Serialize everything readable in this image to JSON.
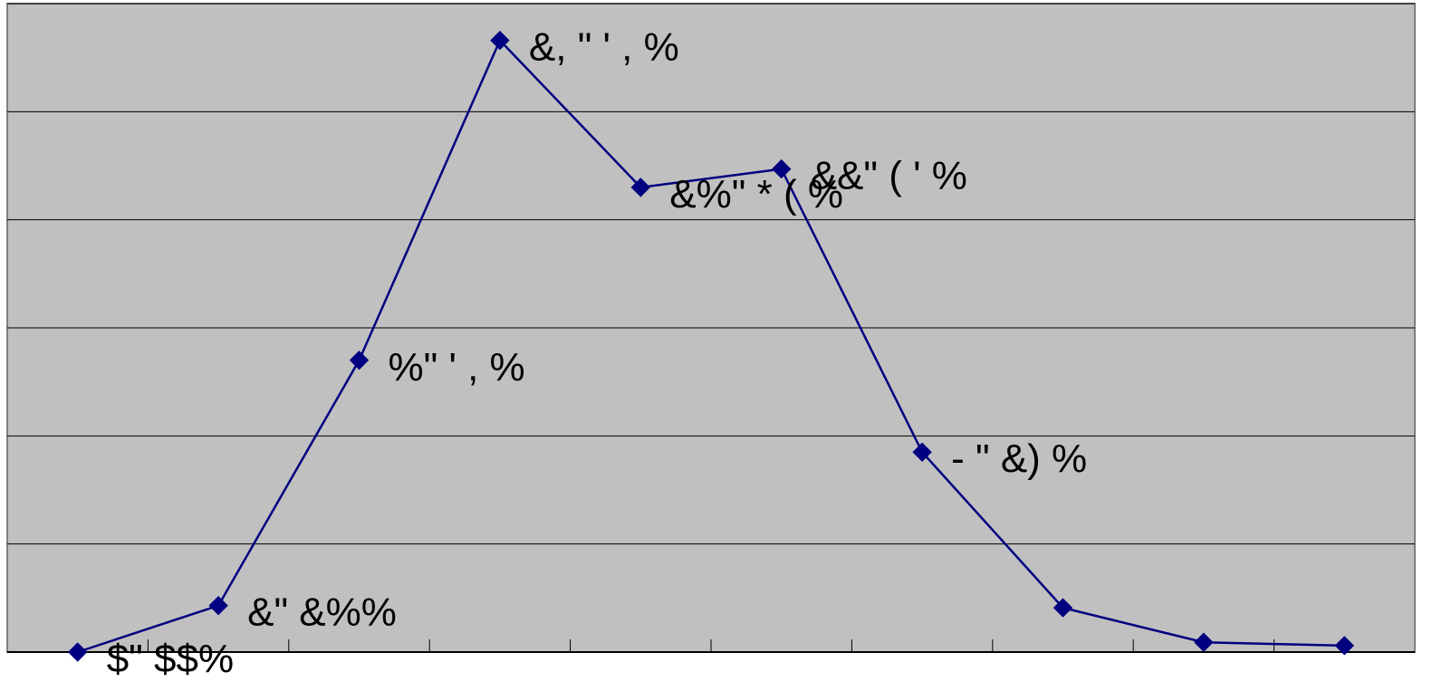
{
  "colors": {
    "plot_background": "#c0c0c0",
    "gridline": "#000000",
    "series": "#000080",
    "label_text": "#000000"
  },
  "chart_data": {
    "type": "line",
    "grid": true,
    "ylim": [
      0,
      6
    ],
    "yticks": [
      0,
      1,
      2,
      3,
      4,
      5,
      6
    ],
    "x": [
      1,
      2,
      3,
      4,
      5,
      6,
      7,
      8,
      9,
      10
    ],
    "xlim": [
      0.5,
      10.5
    ],
    "marker": "diamond",
    "series": [
      {
        "values": [
          0.0,
          0.43,
          2.7,
          5.66,
          4.3,
          4.47,
          1.85,
          0.41,
          0.09,
          0.06
        ],
        "labels": [
          "$\" $$%",
          "&\" &%%",
          "%\" ' , %",
          "&, \" ' , %",
          "&%\" * ( %",
          "&&\" ( ' %",
          "- \" &) %",
          "",
          "",
          ""
        ]
      }
    ]
  }
}
